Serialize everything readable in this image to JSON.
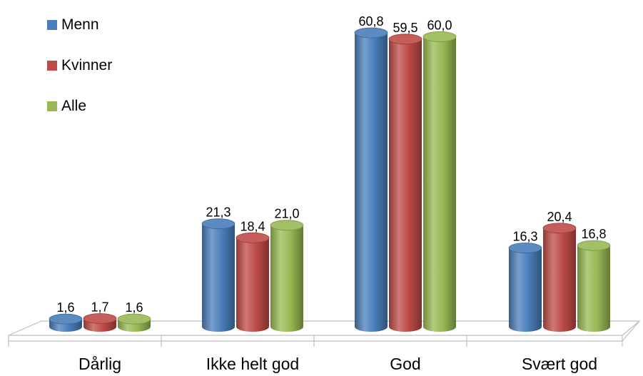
{
  "chart_data": {
    "type": "bar",
    "title": "",
    "xlabel": "",
    "ylabel": "",
    "categories": [
      "Dårlig",
      "Ikke helt god",
      "God",
      "Svært god"
    ],
    "series": [
      {
        "name": "Menn",
        "values": [
          "1,6",
          "21,3",
          "60,8",
          "16,3"
        ],
        "color": "#4a7ebb"
      },
      {
        "name": "Kvinner",
        "values": [
          "1,7",
          "18,4",
          "59,5",
          "20,4"
        ],
        "color": "#be4b48"
      },
      {
        "name": "Alle",
        "values": [
          "1,6",
          "21,0",
          "60,0",
          "16,8"
        ],
        "color": "#98b954"
      }
    ],
    "ylim": [
      0,
      61
    ],
    "grid": false,
    "legend_position": "top-left",
    "bar_shape": "3d-cylinder"
  }
}
